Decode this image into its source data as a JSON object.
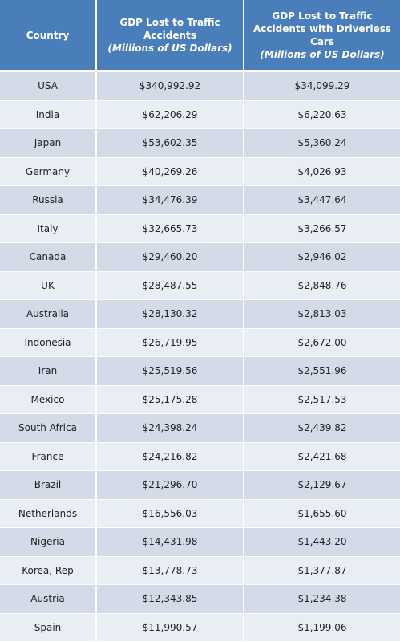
{
  "table": {
    "columns": [
      {
        "title": "Country"
      },
      {
        "title": "GDP Lost to Traffic Accidents",
        "unit": "(Millions of US Dollars)"
      },
      {
        "title": "GDP Lost to Traffic Accidents with Driverless Cars",
        "unit": "(Millions of US Dollars)"
      }
    ],
    "rows": [
      [
        "USA",
        "$340,992.92",
        "$34,099.29"
      ],
      [
        "India",
        "$62,206.29",
        "$6,220.63"
      ],
      [
        "Japan",
        "$53,602.35",
        "$5,360.24"
      ],
      [
        "Germany",
        "$40,269.26",
        "$4,026.93"
      ],
      [
        "Russia",
        "$34,476.39",
        "$3,447.64"
      ],
      [
        "Italy",
        "$32,665.73",
        "$3,266.57"
      ],
      [
        "Canada",
        "$29,460.20",
        "$2,946.02"
      ],
      [
        "UK",
        "$28,487.55",
        "$2,848.76"
      ],
      [
        "Australia",
        "$28,130.32",
        "$2,813.03"
      ],
      [
        "Indonesia",
        "$26,719.95",
        "$2,672.00"
      ],
      [
        "Iran",
        "$25,519.56",
        "$2,551.96"
      ],
      [
        "Mexico",
        "$25,175.28",
        "$2,517.53"
      ],
      [
        "South Africa",
        "$24,398.24",
        "$2,439.82"
      ],
      [
        "France",
        "$24,216.82",
        "$2,421.68"
      ],
      [
        "Brazil",
        "$21,296.70",
        "$2,129.67"
      ],
      [
        "Netherlands",
        "$16,556.03",
        "$1,655.60"
      ],
      [
        "Nigeria",
        "$14,431.98",
        "$1,443.20"
      ],
      [
        "Korea, Rep",
        "$13,778.73",
        "$1,377.87"
      ],
      [
        "Austria",
        "$12,343.85",
        "$1,234.38"
      ],
      [
        "Spain",
        "$11,990.57",
        "$1,199.06"
      ]
    ]
  }
}
